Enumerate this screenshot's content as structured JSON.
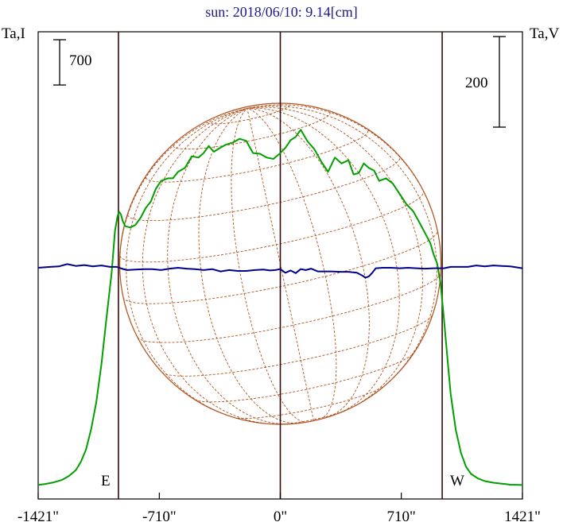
{
  "title": "sun: 2018/06/10: 9.14[cm]",
  "left_axis_label": "Ta,I",
  "right_axis_label": "Ta,V",
  "left_scale_bar_label": "700",
  "right_scale_bar_label": "200",
  "east_label": "E",
  "west_label": "W",
  "colors": {
    "intensity": "#00a000",
    "polarization": "#00008b",
    "disk": "#b0521e",
    "frame": "#000000",
    "limb_lines": "#3a0a0a",
    "title": "#1a1a8c"
  },
  "chart_data": {
    "type": "line",
    "title": "sun: 2018/06/10: 9.14[cm]",
    "xlabel": "",
    "ylabel_left": "Ta,I",
    "ylabel_right": "Ta,V",
    "xlim": [
      -1421,
      1421
    ],
    "x_ticks": [
      "-1421\"",
      "-710\"",
      "0\"",
      "710\"",
      "1421\""
    ],
    "x_tick_values": [
      -1421,
      -710,
      0,
      710,
      1421
    ],
    "limb_x": [
      -950,
      0,
      950
    ],
    "solar_radius_arcsec": 950,
    "grid": false,
    "series": [
      {
        "key": "intensity",
        "axis": "left",
        "x": [
          -1421,
          -1380,
          -1330,
          -1280,
          -1240,
          -1200,
          -1170,
          -1140,
          -1110,
          -1080,
          -1050,
          -1020,
          -990,
          -970,
          -955,
          -945,
          -935,
          -925,
          -910,
          -880,
          -850,
          -820,
          -790,
          -760,
          -730,
          -700,
          -660,
          -630,
          -600,
          -560,
          -520,
          -480,
          -450,
          -420,
          -390,
          -360,
          -320,
          -280,
          -240,
          -200,
          -160,
          -120,
          -80,
          -40,
          0,
          30,
          60,
          90,
          120,
          140,
          160,
          200,
          240,
          280,
          320,
          360,
          400,
          430,
          460,
          490,
          520,
          550,
          580,
          620,
          660,
          700,
          740,
          780,
          820,
          860,
          880,
          900,
          920,
          940,
          960,
          980,
          1000,
          1030,
          1060,
          1090,
          1120,
          1160,
          1200,
          1250,
          1300,
          1350,
          1421
        ],
        "y": [
          20,
          35,
          60,
          100,
          160,
          250,
          380,
          570,
          880,
          1300,
          1880,
          2600,
          3300,
          3950,
          4180,
          4240,
          4200,
          4100,
          4020,
          4000,
          4040,
          4150,
          4300,
          4400,
          4600,
          4720,
          4760,
          4760,
          4860,
          4920,
          5100,
          5080,
          5150,
          5260,
          5170,
          5220,
          5280,
          5310,
          5370,
          5340,
          5150,
          5140,
          5080,
          5060,
          5150,
          5230,
          5350,
          5400,
          5510,
          5420,
          5330,
          5210,
          5020,
          4860,
          5080,
          4990,
          5040,
          4820,
          4840,
          4990,
          4920,
          4880,
          4720,
          4760,
          4680,
          4520,
          4360,
          4250,
          4060,
          3860,
          3760,
          3580,
          3450,
          3150,
          2600,
          2000,
          1420,
          870,
          520,
          300,
          190,
          120,
          80,
          55,
          40,
          25,
          20
        ]
      },
      {
        "key": "polarization",
        "axis": "right",
        "x": [
          -1421,
          -1350,
          -1300,
          -1250,
          -1200,
          -1150,
          -1100,
          -1050,
          -1000,
          -960,
          -930,
          -900,
          -850,
          -800,
          -750,
          -700,
          -650,
          -600,
          -550,
          -500,
          -450,
          -400,
          -350,
          -300,
          -250,
          -200,
          -150,
          -100,
          -60,
          -30,
          0,
          30,
          60,
          90,
          120,
          150,
          180,
          220,
          260,
          300,
          350,
          400,
          450,
          480,
          500,
          520,
          540,
          560,
          600,
          650,
          700,
          750,
          800,
          850,
          900,
          960,
          1000,
          1050,
          1100,
          1150,
          1200,
          1250,
          1300,
          1350,
          1421
        ],
        "y": [
          0,
          2,
          3,
          8,
          4,
          6,
          3,
          5,
          2,
          2,
          -2,
          -5,
          -4,
          -3,
          -3,
          -5,
          -2,
          0,
          -2,
          -3,
          -5,
          -3,
          -8,
          -5,
          -7,
          -7,
          -5,
          -4,
          -6,
          -5,
          -3,
          -11,
          -6,
          -12,
          -3,
          -5,
          -2,
          -8,
          -8,
          -8,
          -9,
          -9,
          -11,
          -17,
          -22,
          -19,
          -11,
          -1,
          0,
          0,
          -1,
          0,
          -1,
          -2,
          -1,
          -1,
          2,
          2,
          2,
          5,
          3,
          5,
          4,
          3,
          -1
        ]
      }
    ],
    "annotations": [
      "E",
      "W",
      "700",
      "200"
    ]
  }
}
